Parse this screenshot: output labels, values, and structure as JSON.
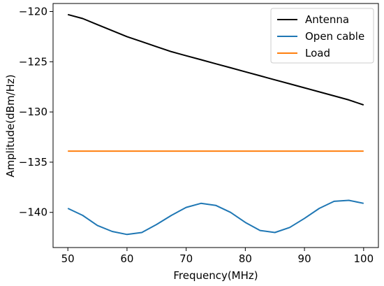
{
  "chart_data": {
    "type": "line",
    "title": "",
    "xlabel": "Frequency(MHz)",
    "ylabel": "Amplitude(dBm/Hz)",
    "xlim": [
      47.5,
      102.5
    ],
    "ylim": [
      -143.5,
      -119.2
    ],
    "x_ticks": [
      50,
      60,
      70,
      80,
      90,
      100
    ],
    "y_ticks": [
      -120,
      -125,
      -130,
      -135,
      -140
    ],
    "grid": false,
    "legend_position": "top-right",
    "series": [
      {
        "name": "Antenna",
        "color": "#000000",
        "x": [
          50,
          52.5,
          55,
          57.5,
          60,
          62.5,
          65,
          67.5,
          70,
          72.5,
          75,
          77.5,
          80,
          82.5,
          85,
          87.5,
          90,
          92.5,
          95,
          97.5,
          100
        ],
        "y": [
          -120.3,
          -120.7,
          -121.3,
          -121.9,
          -122.5,
          -123.0,
          -123.5,
          -124.0,
          -124.4,
          -124.8,
          -125.2,
          -125.6,
          -126.0,
          -126.4,
          -126.8,
          -127.2,
          -127.6,
          -128.0,
          -128.4,
          -128.8,
          -129.3
        ]
      },
      {
        "name": "Open cable",
        "color": "#1f77b4",
        "x": [
          50,
          52.5,
          55,
          57.5,
          60,
          62.5,
          65,
          67.5,
          70,
          72.5,
          75,
          77.5,
          80,
          82.5,
          85,
          87.5,
          90,
          92.5,
          95,
          97.5,
          100
        ],
        "y": [
          -139.6,
          -140.3,
          -141.3,
          -141.9,
          -142.2,
          -142.0,
          -141.2,
          -140.3,
          -139.5,
          -139.1,
          -139.3,
          -140.0,
          -141.0,
          -141.8,
          -142.0,
          -141.5,
          -140.6,
          -139.6,
          -138.9,
          -138.8,
          -139.1
        ]
      },
      {
        "name": "Load",
        "color": "#ff7f0e",
        "x": [
          50,
          60,
          70,
          80,
          90,
          100
        ],
        "y": [
          -133.9,
          -133.9,
          -133.9,
          -133.9,
          -133.9,
          -133.9
        ]
      }
    ]
  }
}
